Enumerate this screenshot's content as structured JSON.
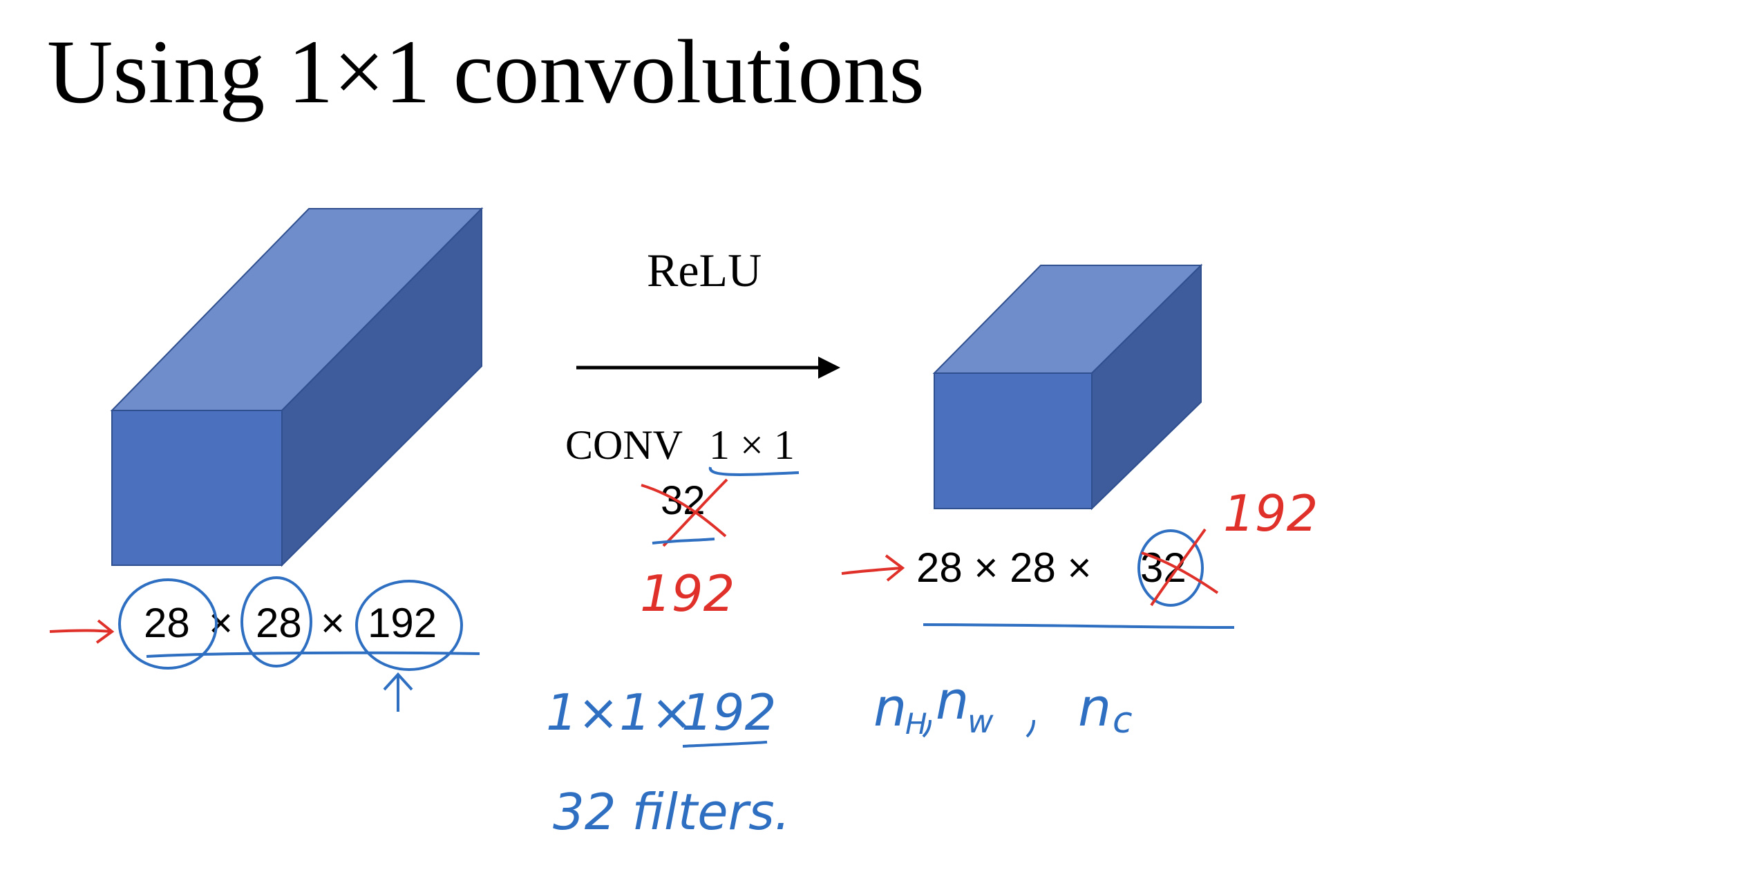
{
  "slide": {
    "title": "Using 1×1 convolutions"
  },
  "input_volume": {
    "label_dim1": "28",
    "label_times1": "×",
    "label_dim2": "28",
    "label_times2": "×",
    "label_dim3": "192",
    "front_color": "#4A70BE",
    "top_color": "#6F8DCA",
    "side_color": "#3E5C9C"
  },
  "operation": {
    "activation": "ReLU",
    "conv_text": "CONV",
    "conv_size": "1 × 1",
    "num_filters_typed": "32"
  },
  "output_volume": {
    "label_prefix": "28 × 28 ×",
    "label_channels": "32",
    "front_color": "#4A70BE",
    "top_color": "#6F8DCA",
    "side_color": "#3E5C9C"
  },
  "annotations": {
    "red_color": "#E0302A",
    "blue_color": "#2E6FC2",
    "red_192_under_32": "192",
    "red_192_output": "192",
    "blue_filter_shape_prefix": "1×1×",
    "blue_filter_shape_channels": "192",
    "blue_filter_count": "32 filters.",
    "blue_dims_note": "n",
    "blue_dims_h": "H",
    "blue_dims_w": "w",
    "blue_dims_c": "c"
  }
}
